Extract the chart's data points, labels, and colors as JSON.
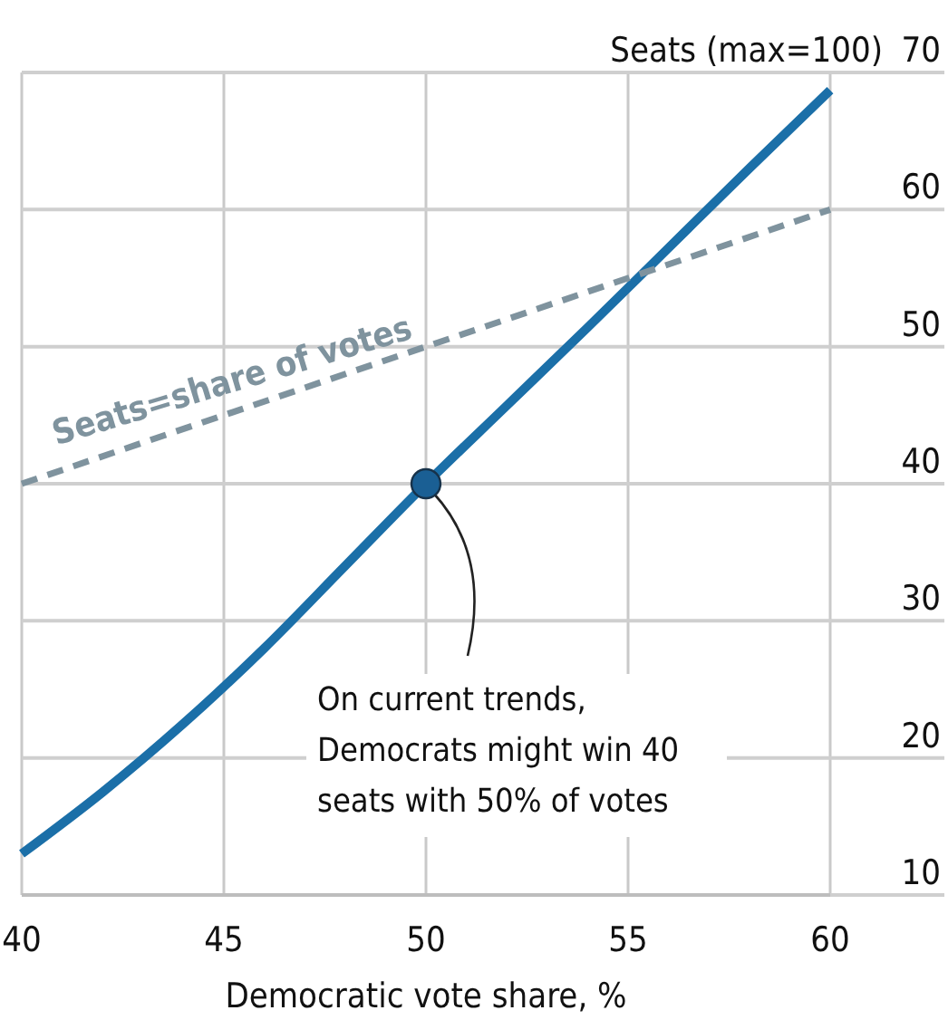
{
  "chart_data": {
    "type": "line",
    "xlabel": "Democratic vote share, %",
    "ylabel": "Seats (max=100)",
    "xlim": [
      40,
      60
    ],
    "xticks": [
      40,
      45,
      50,
      55,
      60
    ],
    "ylim": [
      10,
      70
    ],
    "yticks": [
      10,
      20,
      30,
      40,
      50,
      60,
      70
    ],
    "grid": true,
    "series": [
      {
        "color": "#1b6fa8",
        "line_style": "solid",
        "x": [
          40,
          42,
          44,
          46,
          48,
          50,
          52,
          54,
          56,
          58,
          60
        ],
        "values": [
          13,
          17.5,
          22.5,
          28,
          34,
          40,
          45.7,
          51.4,
          57.2,
          63,
          68.7
        ]
      },
      {
        "name": "Seats=share of votes",
        "color": "#7f939e",
        "line_style": "dashed",
        "x": [
          40,
          60
        ],
        "values": [
          40,
          60
        ]
      },
      {
        "type": "scatter",
        "color": "#1a5f94",
        "marker": "circle",
        "x": [
          50
        ],
        "values": [
          40
        ]
      }
    ],
    "annotations": [
      {
        "text": "On current trends,\nDemocrats might win 40\nseats with 50% of votes",
        "x": 50,
        "y": 40
      }
    ]
  }
}
